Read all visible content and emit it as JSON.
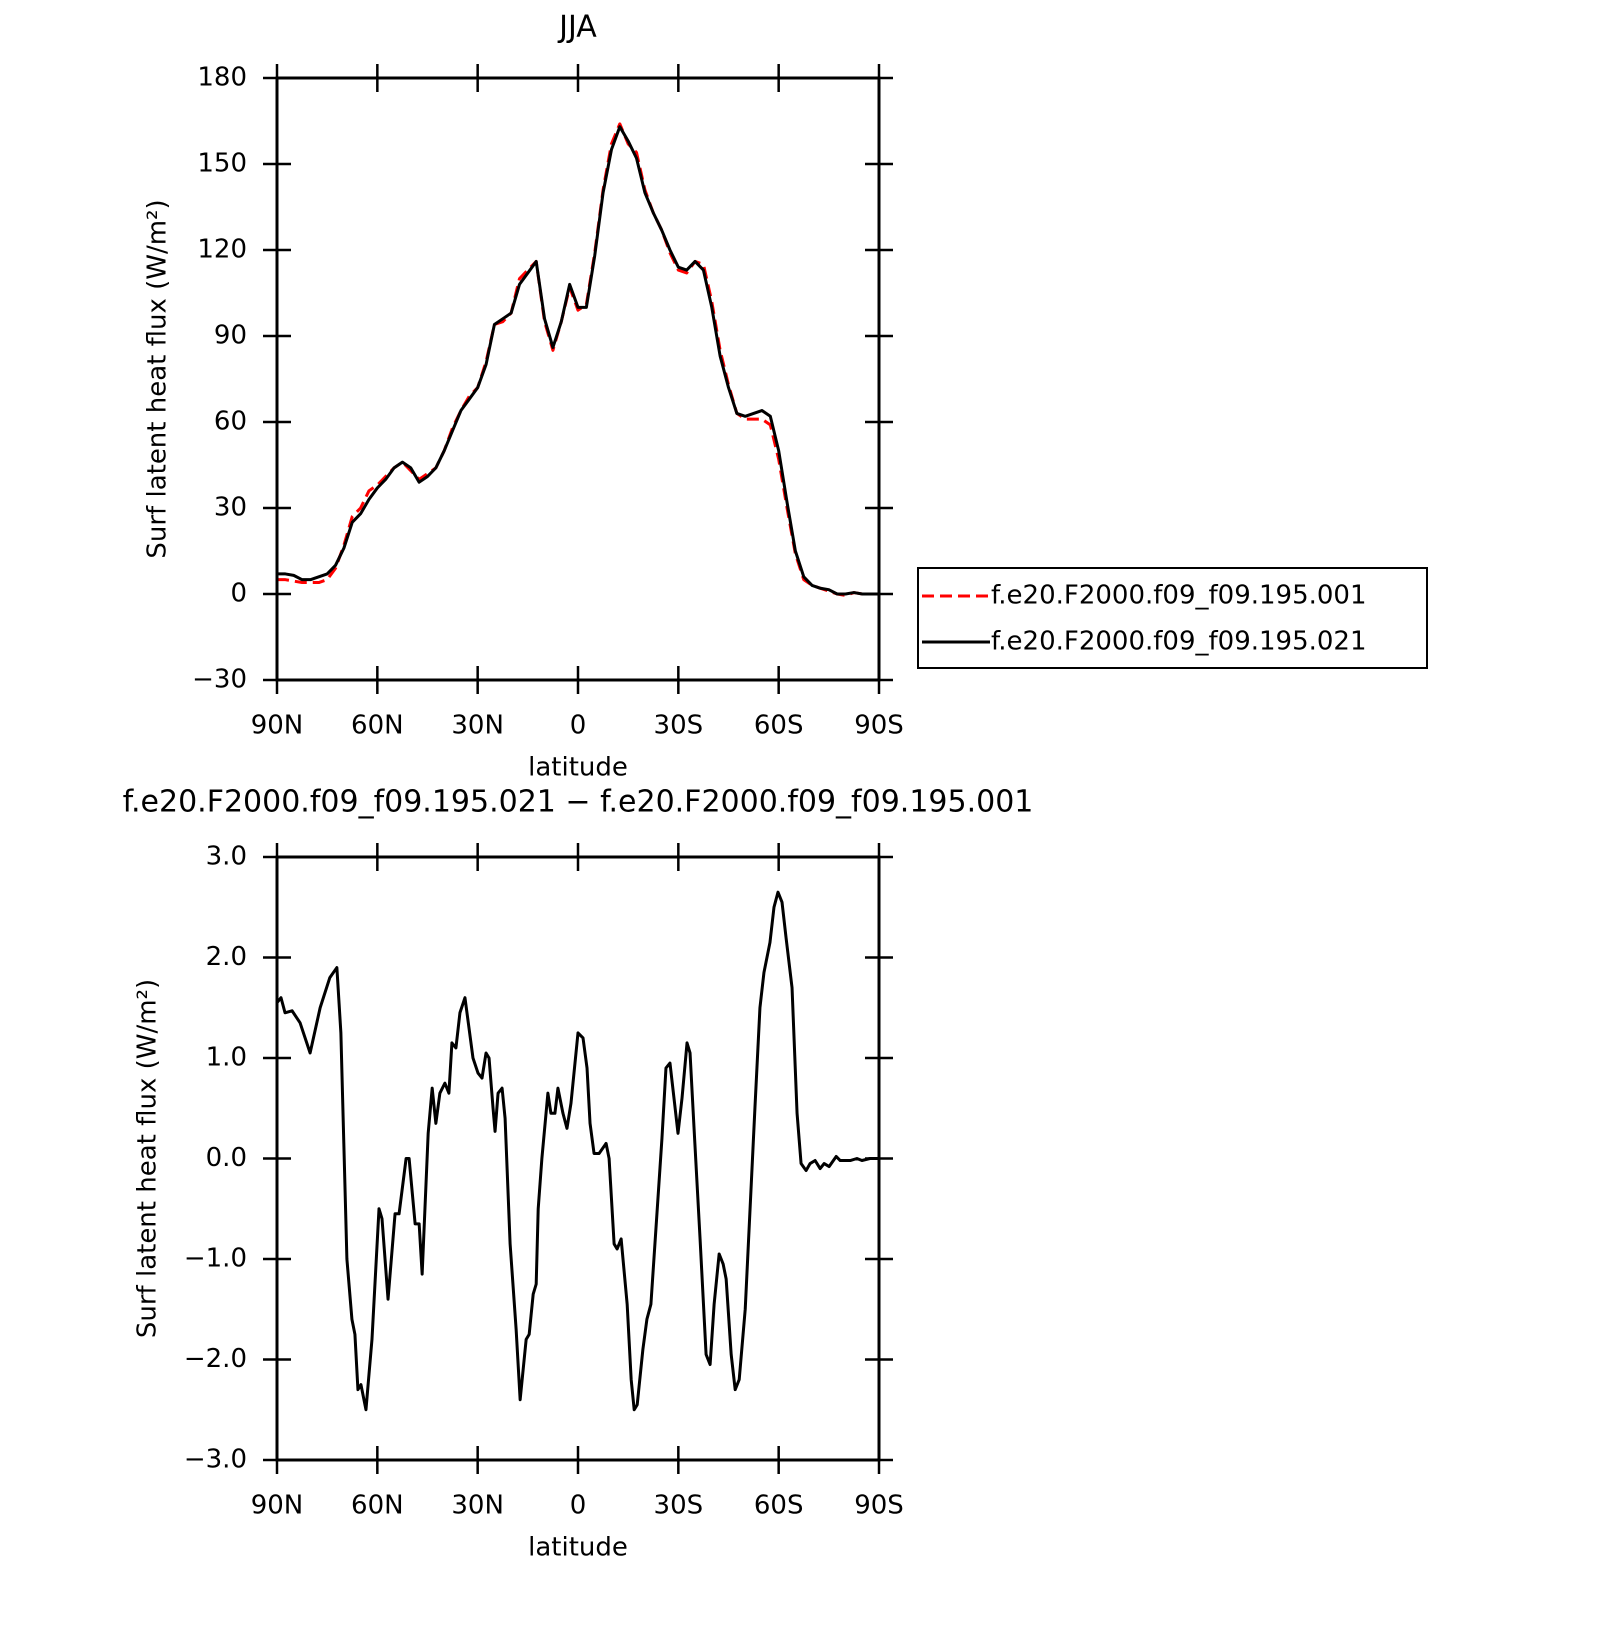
{
  "chart_data": [
    {
      "type": "line",
      "title": "JJA",
      "xlabel": "latitude",
      "ylabel": "Surf latent heat flux (W/m²)",
      "xlim": [
        90,
        -90
      ],
      "ylim": [
        -30,
        180
      ],
      "xticks": [
        {
          "value": 90,
          "label": "90N"
        },
        {
          "value": 60,
          "label": "60N"
        },
        {
          "value": 30,
          "label": "30N"
        },
        0,
        {
          "value": -30,
          "label": "30S"
        },
        {
          "value": -60,
          "label": "60S"
        },
        {
          "value": -90,
          "label": "90S"
        }
      ],
      "yticks": [
        {
          "value": -30,
          "label": "−30"
        },
        0,
        30,
        60,
        90,
        120,
        150,
        180
      ],
      "legend": "right",
      "x": [
        90,
        87.5,
        85,
        82.5,
        80,
        77.5,
        75,
        72.5,
        70,
        67.5,
        65,
        62.5,
        60,
        57.5,
        55,
        52.5,
        50,
        47.5,
        45,
        42.5,
        40,
        37.5,
        35,
        32.5,
        30,
        27.5,
        25,
        22.5,
        20,
        17.5,
        15,
        12.5,
        10,
        7.5,
        5,
        2.5,
        0,
        -2.5,
        -5,
        -7.5,
        -10,
        -12.5,
        -15,
        -17.5,
        -20,
        -22.5,
        -25,
        -27.5,
        -30,
        -32.5,
        -35,
        -37.5,
        -40,
        -42.5,
        -45,
        -47.5,
        -50,
        -52.5,
        -55,
        -57.5,
        -60,
        -62.5,
        -65,
        -67.5,
        -70,
        -72.5,
        -75,
        -77.5,
        -80,
        -82.5,
        -85,
        -87.5,
        -90
      ],
      "series": [
        {
          "name": "f.e20.F2000.f09_f09.195.001",
          "color": "#ff0000",
          "style": "dashed",
          "values": [
            5,
            5,
            4.5,
            4,
            4,
            4,
            5,
            9,
            17,
            27,
            30,
            36,
            38,
            41,
            44,
            46,
            43,
            40,
            42,
            44,
            50,
            58,
            64,
            69,
            72,
            81,
            94,
            95,
            98,
            110,
            113,
            116,
            95,
            85,
            95,
            107,
            99,
            101,
            119,
            141,
            157,
            164,
            157,
            154,
            141,
            133,
            127,
            119,
            113,
            112,
            116,
            115,
            102,
            85,
            73,
            63,
            61,
            61,
            61,
            59,
            47,
            30,
            14,
            5,
            3,
            2,
            1,
            0,
            -0.5,
            0.5,
            0,
            0,
            0
          ]
        },
        {
          "name": "f.e20.F2000.f09_f09.195.021",
          "color": "#000000",
          "style": "solid",
          "values": [
            7,
            7,
            6.5,
            5,
            5,
            6,
            7,
            10,
            16,
            25,
            28,
            33,
            37,
            40,
            44,
            46,
            44,
            39,
            41,
            44,
            50,
            57,
            64,
            68,
            72,
            80,
            94,
            96,
            98,
            108,
            112,
            116,
            96,
            86,
            95,
            108,
            100,
            100,
            118,
            140,
            155,
            163,
            158,
            152,
            140,
            133,
            127,
            120,
            114,
            113,
            116,
            113,
            100,
            83,
            72,
            63,
            62,
            63,
            64,
            62,
            50,
            32,
            15,
            6,
            3,
            2,
            1.5,
            0,
            0,
            0.5,
            0,
            0,
            0
          ]
        }
      ]
    },
    {
      "type": "line",
      "title": "f.e20.F2000.f09_f09.195.021 − f.e20.F2000.f09_f09.195.001",
      "xlabel": "latitude",
      "ylabel": "Surf latent heat flux (W/m²)",
      "xlim": [
        90,
        -90
      ],
      "ylim": [
        -3,
        3
      ],
      "xticks": [
        {
          "value": 90,
          "label": "90N"
        },
        {
          "value": 60,
          "label": "60N"
        },
        {
          "value": 30,
          "label": "30N"
        },
        0,
        {
          "value": -30,
          "label": "30S"
        },
        {
          "value": -60,
          "label": "60S"
        },
        {
          "value": -90,
          "label": "90S"
        }
      ],
      "yticks": [
        {
          "value": -3,
          "label": "−3.0"
        },
        {
          "value": -2,
          "label": "−2.0"
        },
        {
          "value": -1,
          "label": "−1.0"
        },
        {
          "value": 0,
          "label": "0.0"
        },
        {
          "value": 1,
          "label": "1.0"
        },
        {
          "value": 2,
          "label": "2.0"
        },
        {
          "value": 3,
          "label": "3.0"
        }
      ],
      "x": [
        90,
        88.8,
        87.6,
        85.5,
        83.1,
        80.1,
        77.1,
        74.2,
        72.1,
        70.9,
        69.1,
        67.6,
        66.7,
        65.8,
        64.9,
        63.4,
        61.6,
        59.5,
        58.6,
        56.8,
        54.7,
        53.5,
        51.4,
        50.5,
        48.7,
        47.5,
        46.6,
        44.8,
        43.6,
        42.5,
        41.3,
        39.8,
        38.6,
        37.7,
        36.5,
        35.3,
        33.8,
        32.6,
        31.4,
        29.9,
        28.7,
        27.5,
        26.6,
        25.4,
        24.8,
        23.9,
        22.7,
        21.8,
        20.3,
        18.5,
        17.3,
        16.7,
        15.5,
        14.6,
        13.4,
        12.5,
        11.9,
        10.8,
        9.0,
        8.1,
        6.9,
        6.0,
        4.5,
        3.3,
        2.1,
        0,
        -1.5,
        -2.7,
        -3.6,
        -4.8,
        -6.3,
        -8.4,
        -9.3,
        -10.8,
        -11.7,
        -12.9,
        -14.7,
        -15.9,
        -16.8,
        -17.7,
        -19.4,
        -20.6,
        -21.8,
        -23.3,
        -25.1,
        -26.3,
        -27.5,
        -28.7,
        -29.9,
        -31.1,
        -32.6,
        -33.5,
        -34.7,
        -36.5,
        -38.3,
        -39.5,
        -40.7,
        -42.2,
        -43.4,
        -44.3,
        -45.8,
        -47.0,
        -48.2,
        -50.0,
        -52.9,
        -54.4,
        -55.6,
        -57.4,
        -58.6,
        -59.8,
        -61.0,
        -62.2,
        -64.0,
        -65.5,
        -66.7,
        -68.2,
        -69.4,
        -70.9,
        -72.4,
        -73.6,
        -75.1,
        -77.2,
        -78.4,
        -81.4,
        -83.4,
        -84.9,
        -87.3,
        -90
      ],
      "series": [
        {
          "color": "#000000",
          "style": "solid",
          "values": [
            1.55,
            1.6,
            1.45,
            1.47,
            1.35,
            1.05,
            1.5,
            1.8,
            1.9,
            1.25,
            -1.0,
            -1.6,
            -1.75,
            -2.3,
            -2.25,
            -2.5,
            -1.8,
            -0.5,
            -0.6,
            -1.4,
            -0.55,
            -0.55,
            0.0,
            0.0,
            -0.65,
            -0.65,
            -1.15,
            0.25,
            0.7,
            0.35,
            0.65,
            0.75,
            0.65,
            1.15,
            1.1,
            1.45,
            1.6,
            1.3,
            1.0,
            0.85,
            0.8,
            1.05,
            1.0,
            0.5,
            0.27,
            0.65,
            0.7,
            0.4,
            -0.85,
            -1.7,
            -2.4,
            -2.2,
            -1.8,
            -1.75,
            -1.35,
            -1.25,
            -0.5,
            0.0,
            0.65,
            0.45,
            0.45,
            0.7,
            0.45,
            0.3,
            0.55,
            1.25,
            1.2,
            0.9,
            0.35,
            0.05,
            0.05,
            0.15,
            0.0,
            -0.85,
            -0.9,
            -0.8,
            -1.45,
            -2.2,
            -2.5,
            -2.45,
            -1.9,
            -1.6,
            -1.45,
            -0.7,
            0.2,
            0.9,
            0.95,
            0.6,
            0.25,
            0.6,
            1.15,
            1.05,
            0.3,
            -0.8,
            -1.95,
            -2.05,
            -1.45,
            -0.95,
            -1.05,
            -1.2,
            -1.95,
            -2.3,
            -2.2,
            -1.5,
            0.5,
            1.5,
            1.85,
            2.15,
            2.5,
            2.65,
            2.55,
            2.2,
            1.7,
            0.45,
            -0.05,
            -0.12,
            -0.05,
            -0.02,
            -0.1,
            -0.05,
            -0.08,
            0.02,
            -0.02,
            -0.02,
            0.0,
            -0.02,
            0.0,
            0.0
          ]
        }
      ]
    }
  ]
}
